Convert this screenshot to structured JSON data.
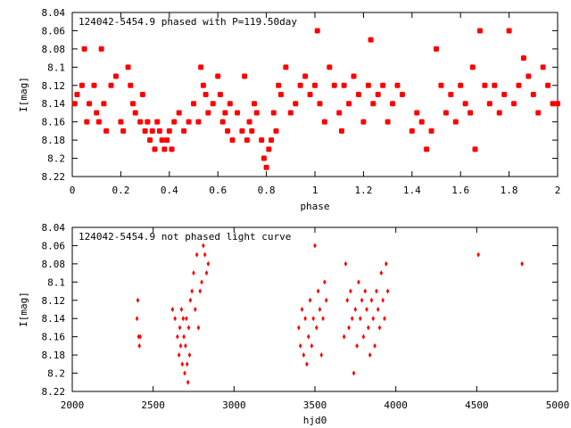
{
  "chart_data": [
    {
      "type": "scatter",
      "title": "124042-5454.9 phased with P=119.50day",
      "xlabel": "phase",
      "ylabel": "I[mag]",
      "xlim": [
        0,
        2
      ],
      "ylim": [
        8.04,
        8.22
      ],
      "y_inverted": true,
      "xticks": [
        "0",
        "0.2",
        "0.4",
        "0.6",
        "0.8",
        "1",
        "1.2",
        "1.4",
        "1.6",
        "1.8",
        "2"
      ],
      "yticks": [
        "8.04",
        "8.06",
        "8.08",
        "8.1",
        "8.12",
        "8.14",
        "8.16",
        "8.18",
        "8.2",
        "8.22"
      ],
      "marker_color": "#ff0000",
      "series": [
        {
          "x": [
            0.01,
            0.02,
            0.04,
            0.05,
            0.06,
            0.07,
            0.09,
            0.1,
            0.11,
            0.12,
            0.13,
            0.14,
            0.16,
            0.18,
            0.2,
            0.21,
            0.23,
            0.24,
            0.25,
            0.26,
            0.28,
            0.29,
            0.3,
            0.31,
            0.32,
            0.33,
            0.34,
            0.35,
            0.36,
            0.37,
            0.38,
            0.39,
            0.4,
            0.41,
            0.42,
            0.44,
            0.46,
            0.48,
            0.5,
            0.52,
            0.53,
            0.54,
            0.55,
            0.56,
            0.58,
            0.6,
            0.61,
            0.62,
            0.63,
            0.64,
            0.65,
            0.66,
            0.68,
            0.7,
            0.71,
            0.72,
            0.73,
            0.74,
            0.75,
            0.76,
            0.78,
            0.79,
            0.8,
            0.81,
            0.82,
            0.83,
            0.84,
            0.85,
            0.86,
            0.88,
            0.9,
            0.92,
            0.94,
            0.96,
            0.98,
            1.0,
            1.01,
            1.02,
            1.04,
            1.06,
            1.08,
            1.1,
            1.11,
            1.12,
            1.14,
            1.16,
            1.18,
            1.2,
            1.22,
            1.23,
            1.24,
            1.26,
            1.28,
            1.3,
            1.32,
            1.34,
            1.36,
            1.4,
            1.42,
            1.44,
            1.46,
            1.48,
            1.5,
            1.52,
            1.54,
            1.56,
            1.58,
            1.6,
            1.62,
            1.64,
            1.65,
            1.66,
            1.68,
            1.7,
            1.72,
            1.74,
            1.76,
            1.78,
            1.8,
            1.82,
            1.84,
            1.86,
            1.88,
            1.9,
            1.92,
            1.94,
            1.96,
            1.98,
            2.0
          ],
          "y": [
            8.14,
            8.13,
            8.12,
            8.08,
            8.16,
            8.14,
            8.12,
            8.15,
            8.16,
            8.08,
            8.14,
            8.17,
            8.12,
            8.11,
            8.16,
            8.17,
            8.1,
            8.12,
            8.14,
            8.15,
            8.16,
            8.13,
            8.17,
            8.16,
            8.18,
            8.17,
            8.19,
            8.16,
            8.17,
            8.18,
            8.19,
            8.18,
            8.17,
            8.19,
            8.16,
            8.15,
            8.17,
            8.16,
            8.14,
            8.16,
            8.1,
            8.12,
            8.13,
            8.15,
            8.14,
            8.11,
            8.13,
            8.16,
            8.15,
            8.17,
            8.14,
            8.18,
            8.15,
            8.17,
            8.11,
            8.18,
            8.16,
            8.17,
            8.14,
            8.15,
            8.18,
            8.2,
            8.21,
            8.19,
            8.18,
            8.15,
            8.17,
            8.12,
            8.13,
            8.1,
            8.15,
            8.14,
            8.12,
            8.11,
            8.13,
            8.12,
            8.06,
            8.14,
            8.16,
            8.1,
            8.12,
            8.15,
            8.17,
            8.12,
            8.14,
            8.11,
            8.13,
            8.16,
            8.12,
            8.07,
            8.14,
            8.13,
            8.12,
            8.16,
            8.14,
            8.12,
            8.13,
            8.17,
            8.15,
            8.16,
            8.19,
            8.17,
            8.08,
            8.12,
            8.15,
            8.13,
            8.16,
            8.12,
            8.14,
            8.15,
            8.1,
            8.19,
            8.06,
            8.12,
            8.14,
            8.12,
            8.15,
            8.13,
            8.06,
            8.14,
            8.12,
            8.09,
            8.11,
            8.13,
            8.15,
            8.1,
            8.12,
            8.14,
            8.14
          ]
        }
      ]
    },
    {
      "type": "scatter",
      "title": "124042-5454.9 not phased light curve",
      "xlabel": "hjd0",
      "ylabel": "I[mag]",
      "xlim": [
        2000,
        5000
      ],
      "ylim": [
        8.04,
        8.22
      ],
      "y_inverted": true,
      "xticks": [
        "2000",
        "2500",
        "3000",
        "3500",
        "4000",
        "4500",
        "5000"
      ],
      "yticks": [
        "8.04",
        "8.06",
        "8.08",
        "8.1",
        "8.12",
        "8.14",
        "8.16",
        "8.18",
        "8.2",
        "8.22"
      ],
      "marker_color": "#ff0000",
      "series": [
        {
          "x": [
            2400,
            2405,
            2410,
            2415,
            2420,
            2620,
            2635,
            2650,
            2660,
            2665,
            2670,
            2675,
            2680,
            2685,
            2690,
            2695,
            2700,
            2705,
            2710,
            2715,
            2720,
            2725,
            2730,
            2740,
            2750,
            2760,
            2770,
            2780,
            2790,
            2800,
            2810,
            2820,
            2830,
            2840,
            3400,
            3410,
            3420,
            3430,
            3440,
            3450,
            3460,
            3470,
            3480,
            3490,
            3500,
            3510,
            3520,
            3530,
            3540,
            3550,
            3560,
            3570,
            3680,
            3690,
            3700,
            3710,
            3720,
            3730,
            3740,
            3750,
            3760,
            3770,
            3780,
            3790,
            3800,
            3810,
            3820,
            3830,
            3840,
            3850,
            3860,
            3870,
            3880,
            3890,
            3900,
            3910,
            3920,
            3930,
            3940,
            3950,
            4510,
            4780
          ],
          "y": [
            8.14,
            8.12,
            8.16,
            8.17,
            8.16,
            8.13,
            8.14,
            8.16,
            8.18,
            8.15,
            8.17,
            8.13,
            8.19,
            8.14,
            8.16,
            8.2,
            8.17,
            8.14,
            8.19,
            8.21,
            8.15,
            8.18,
            8.12,
            8.11,
            8.09,
            8.13,
            8.07,
            8.15,
            8.11,
            8.1,
            8.06,
            8.07,
            8.09,
            8.08,
            8.15,
            8.17,
            8.13,
            8.18,
            8.14,
            8.19,
            8.16,
            8.12,
            8.17,
            8.14,
            8.06,
            8.15,
            8.11,
            8.13,
            8.18,
            8.14,
            8.1,
            8.12,
            8.16,
            8.08,
            8.12,
            8.15,
            8.11,
            8.14,
            8.2,
            8.13,
            8.17,
            8.1,
            8.14,
            8.12,
            8.16,
            8.11,
            8.13,
            8.15,
            8.18,
            8.12,
            8.14,
            8.17,
            8.11,
            8.13,
            8.15,
            8.09,
            8.12,
            8.14,
            8.08,
            8.11,
            8.07,
            8.08
          ]
        }
      ]
    }
  ]
}
